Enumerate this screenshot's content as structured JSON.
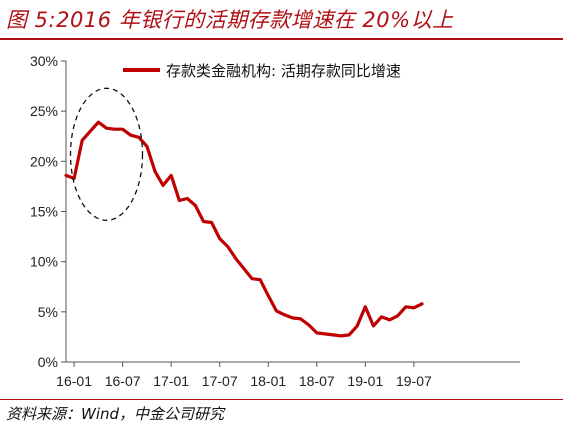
{
  "figure": {
    "title": "图 5:2016 年银行的活期存款增速在 20%以上",
    "source": "资料来源：Wind，中金公司研究"
  },
  "colors": {
    "accent": "#b01015",
    "line": "#c00000",
    "axis": "#555555"
  },
  "chart_data": {
    "type": "line",
    "legend_position": "top-right",
    "grid": false,
    "ylim": [
      0,
      30
    ],
    "y_ticks": [
      "0%",
      "5%",
      "10%",
      "15%",
      "20%",
      "25%",
      "30%"
    ],
    "x_ticks": [
      "16-01",
      "16-07",
      "17-01",
      "17-07",
      "18-01",
      "18-07",
      "19-01",
      "19-07"
    ],
    "annotation": "dashed ellipse highlighting the 2016 peak above 20%",
    "series": [
      {
        "name": "存款类金融机构: 活期存款同比增速",
        "x": [
          "2015-12",
          "2016-01",
          "2016-02",
          "2016-03",
          "2016-04",
          "2016-05",
          "2016-06",
          "2016-07",
          "2016-08",
          "2016-09",
          "2016-10",
          "2016-11",
          "2016-12",
          "2017-01",
          "2017-02",
          "2017-03",
          "2017-04",
          "2017-05",
          "2017-06",
          "2017-07",
          "2017-08",
          "2017-09",
          "2017-10",
          "2017-11",
          "2017-12",
          "2018-01",
          "2018-02",
          "2018-03",
          "2018-04",
          "2018-05",
          "2018-06",
          "2018-07",
          "2018-08",
          "2018-09",
          "2018-10",
          "2018-11",
          "2018-12",
          "2019-01",
          "2019-02",
          "2019-03",
          "2019-04",
          "2019-05",
          "2019-06",
          "2019-07",
          "2019-08"
        ],
        "values": [
          18.6,
          18.3,
          22.1,
          23.0,
          23.9,
          23.3,
          23.2,
          23.2,
          22.6,
          22.4,
          21.5,
          19.0,
          17.6,
          18.6,
          16.1,
          16.3,
          15.6,
          14.0,
          13.9,
          12.3,
          11.5,
          10.3,
          9.3,
          8.3,
          8.2,
          6.6,
          5.1,
          4.7,
          4.4,
          4.3,
          3.7,
          2.9,
          2.8,
          2.7,
          2.6,
          2.7,
          3.6,
          5.5,
          3.6,
          4.5,
          4.2,
          4.6,
          5.5,
          5.4,
          5.8
        ]
      }
    ]
  }
}
